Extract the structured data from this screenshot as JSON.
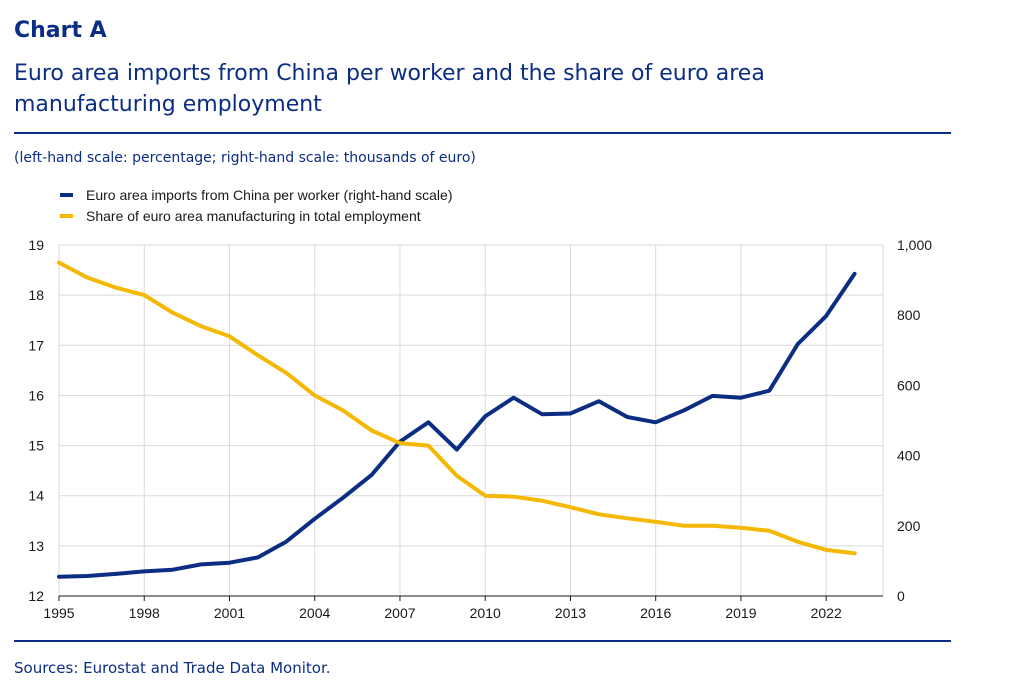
{
  "header": {
    "title": "Chart A",
    "subtitle": "Euro area imports from China per worker and the share of euro area manufacturing employment",
    "units": "(left-hand scale: percentage; right-hand scale: thousands of euro)"
  },
  "footer": {
    "source": "Sources: Eurostat and Trade Data Monitor."
  },
  "colors": {
    "imports": "#0b2d83",
    "share": "#f5b800",
    "grid": "#d9d9d9",
    "axis": "#1a1a1a"
  },
  "chart_data": {
    "type": "line",
    "x": [
      1995,
      1996,
      1997,
      1998,
      1999,
      2000,
      2001,
      2002,
      2003,
      2004,
      2005,
      2006,
      2007,
      2008,
      2009,
      2010,
      2011,
      2012,
      2013,
      2014,
      2015,
      2016,
      2017,
      2018,
      2019,
      2020,
      2021,
      2022,
      2023
    ],
    "xlim": [
      1995,
      2024
    ],
    "x_ticks": [
      "1995",
      "1998",
      "2001",
      "2004",
      "2007",
      "2010",
      "2013",
      "2016",
      "2019",
      "2022"
    ],
    "y_left_lim": [
      12,
      19
    ],
    "y_left_ticks": [
      "12",
      "13",
      "14",
      "15",
      "16",
      "17",
      "18",
      "19"
    ],
    "y_right_lim": [
      0,
      1000
    ],
    "y_right_ticks": [
      "0",
      "200",
      "400",
      "600",
      "800",
      "1,000"
    ],
    "grid": true,
    "legend_position": "top-left",
    "series": [
      {
        "name": "Euro area imports from China per worker (right-hand scale)",
        "axis": "right",
        "color": "#0b2d83",
        "values": [
          55,
          57,
          63,
          70,
          75,
          90,
          95,
          110,
          155,
          220,
          280,
          345,
          440,
          495,
          417,
          512,
          565,
          518,
          520,
          555,
          510,
          495,
          529,
          570,
          565,
          585,
          718,
          798,
          918
        ]
      },
      {
        "name": "Share of euro area manufacturing in total employment",
        "axis": "left",
        "color": "#f5b800",
        "values": [
          18.65,
          18.35,
          18.15,
          18.0,
          17.65,
          17.38,
          17.18,
          16.8,
          16.45,
          16.0,
          15.7,
          15.3,
          15.05,
          15.0,
          14.4,
          14.0,
          13.98,
          13.9,
          13.77,
          13.63,
          13.55,
          13.48,
          13.4,
          13.4,
          13.36,
          13.3,
          13.08,
          12.92,
          12.85
        ]
      }
    ]
  }
}
